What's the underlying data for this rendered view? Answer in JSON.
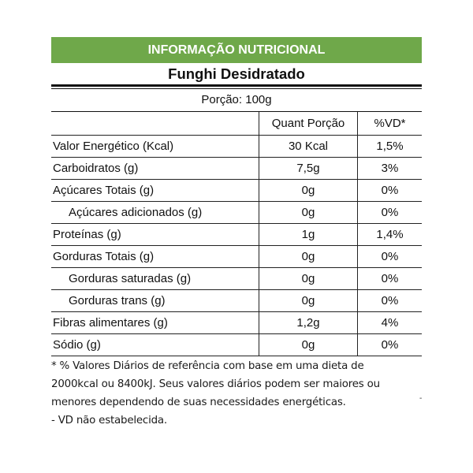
{
  "header": {
    "title": "INFORMAÇÃO NUTRICIONAL",
    "product": "Funghi Desidratado",
    "portion": "Porção: 100g",
    "band_color": "#6fa84a"
  },
  "table": {
    "columns": [
      "",
      "Quant Porção",
      "%VD*"
    ],
    "rows": [
      {
        "name": "Valor Energético (Kcal)",
        "qty": "30 Kcal",
        "vd": "1,5%",
        "indent": false
      },
      {
        "name": "Carboidratos (g)",
        "qty": "7,5g",
        "vd": "3%",
        "indent": false
      },
      {
        "name": "Açúcares Totais (g)",
        "qty": "0g",
        "vd": "0%",
        "indent": false
      },
      {
        "name": "Açúcares adicionados (g)",
        "qty": "0g",
        "vd": "0%",
        "indent": true
      },
      {
        "name": "Proteínas (g)",
        "qty": "1g",
        "vd": "1,4%",
        "indent": false
      },
      {
        "name": "Gorduras Totais (g)",
        "qty": "0g",
        "vd": "0%",
        "indent": false
      },
      {
        "name": "Gorduras saturadas (g)",
        "qty": "0g",
        "vd": "0%",
        "indent": true
      },
      {
        "name": "Gorduras trans (g)",
        "qty": "0g",
        "vd": "0%",
        "indent": true
      },
      {
        "name": "Fibras alimentares (g)",
        "qty": "1,2g",
        "vd": "4%",
        "indent": false
      },
      {
        "name": "Sódio (g)",
        "qty": "0g",
        "vd": "0%",
        "indent": false
      }
    ]
  },
  "footnote": {
    "lines": [
      "* % Valores Diários de referência com base em uma dieta de",
      "2000kcal ou 8400kJ. Seus valores diários podem ser maiores ou",
      "menores dependendo de suas necessidades energéticas.",
      "- VD não estabelecida."
    ],
    "stray_mark": "-"
  }
}
